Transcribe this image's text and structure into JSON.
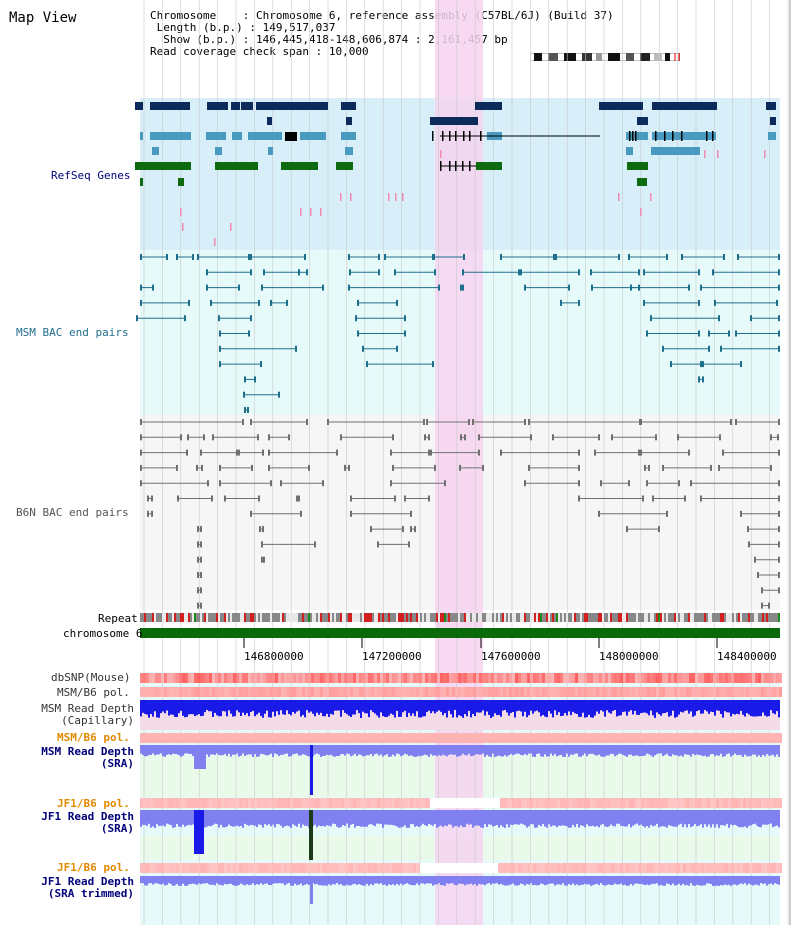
{
  "header": {
    "title": "Map View",
    "chromosome_label": "Chromosome",
    "chromosome_value": "Chromosome 6, reference assembly (C57BL/6J) (Build 37)",
    "length_label": "Length (b.p.)",
    "length_value": "149,517,037",
    "show_label": "Show (b.p.)",
    "show_value": "146,445,418-148,606,874 : 2,161,457 bp",
    "coverage_label": "Read coverage check span",
    "coverage_value": "10,000"
  },
  "tracks": {
    "refseq": "RefSeq Genes",
    "msm_bac": "MSM BAC end pairs",
    "b6n_bac": "B6N BAC end pairs",
    "repeat": "Repeat",
    "chromosome": "chromosome 6",
    "dbsnp": "dbSNP(Mouse)",
    "msm_b6_pol": "MSM/B6 pol.",
    "msm_depth_cap_1": "MSM Read Depth",
    "msm_depth_cap_2": "(Capillary)",
    "msm_b6_pol_2": "MSM/B6 pol.",
    "msm_depth_sra_1": "MSM Read Depth",
    "msm_depth_sra_2": "(SRA)",
    "jf1_b6_pol": "JF1/B6 pol.",
    "jf1_depth_sra_1": "JF1 Read Depth",
    "jf1_depth_sra_2": "(SRA)",
    "jf1_b6_pol_2": "JF1/B6 pol.",
    "jf1_depth_trim_1": "JF1 Read Depth",
    "jf1_depth_trim_2": "(SRA trimmed)"
  },
  "axis": {
    "ticks": [
      "146800000",
      "147200000",
      "147600000",
      "148000000",
      "148400000"
    ]
  },
  "colors": {
    "refseq_bg": "#d8eef8",
    "bac_bg": "#e6fafa",
    "highlight": "#f6d3f0",
    "gene_dark": "#0d2a5c",
    "gene_mid": "#4a9ac0",
    "gene_green": "#0e6a0e",
    "msm_line": "#1e6f8c",
    "b6n_line": "#707070",
    "chrom_green": "#0a6a0a",
    "depth_blue": "#1a1ae8",
    "depth_light": "#8080f0",
    "label_navy": "#00007a",
    "label_orange": "#e08a00",
    "label_teal": "#1f6f8c"
  }
}
